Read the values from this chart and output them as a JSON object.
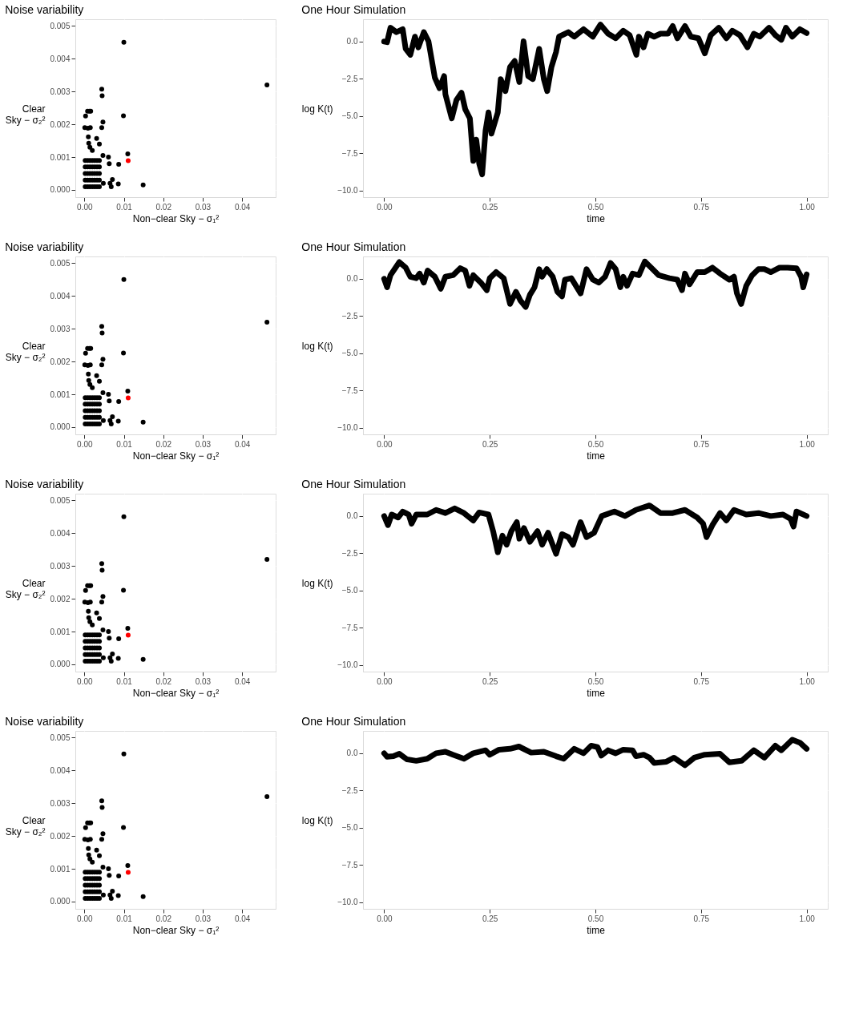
{
  "chart_data": [
    {
      "type": "scatter",
      "title": "Noise variability",
      "xlabel": "Non−clear Sky − σ₁²",
      "ylabel": "Clear Sky − σ₂²",
      "marker": "circle",
      "grid": true,
      "legend": false,
      "xlim": [
        -0.0023,
        0.0485
      ],
      "ylim": [
        -0.00022,
        0.0052
      ],
      "xticks": [
        {
          "value": 0,
          "label": "0.00"
        },
        {
          "value": 0.01,
          "label": "0.01"
        },
        {
          "value": 0.02,
          "label": "0.02"
        },
        {
          "value": 0.03,
          "label": "0.03"
        },
        {
          "value": 0.04,
          "label": "0.04"
        }
      ],
      "yticks": [
        {
          "value": 0,
          "label": "0.000"
        },
        {
          "value": 0.001,
          "label": "0.001"
        },
        {
          "value": 0.002,
          "label": "0.002"
        },
        {
          "value": 0.003,
          "label": "0.003"
        },
        {
          "value": 0.004,
          "label": "0.004"
        },
        {
          "value": 0.005,
          "label": "0.005"
        }
      ],
      "series": [
        {
          "color": "#000000",
          "x": [
            0.01,
            0.0463,
            0.0044,
            0.0045,
            0.0099,
            0.0008,
            0.0013,
            0.0016,
            0.0003,
            0.0047,
            0.0044,
            0.0001,
            0.0009,
            0.0015,
            0.001,
            0.0031,
            0.0038,
            0.0011,
            0.0014,
            0.002,
            0.011,
            0.0061,
            0.0047,
            0.0087,
            0.0063,
            0.0071,
            0.0065,
            0.0068,
            0.0086,
            0.0048,
            0.0149,
            0.0002,
            0.0008,
            0.0014,
            0.002,
            0.0026,
            0.0032,
            0.0038,
            0.0002,
            0.0008,
            0.0014,
            0.002,
            0.0026,
            0.0032,
            0.0038,
            0.0002,
            0.0008,
            0.0014,
            0.002,
            0.0026,
            0.0032,
            0.0038,
            0.0002,
            0.0008,
            0.0014,
            0.002,
            0.0026,
            0.0032,
            0.0038,
            0.0002,
            0.0008,
            0.0014,
            0.002,
            0.0026,
            0.0032,
            0.0038
          ],
          "values": [
            0.0045,
            0.0032,
            0.00307,
            0.00287,
            0.00226,
            0.0024,
            0.0024,
            0.0024,
            0.00225,
            0.00207,
            0.0019,
            0.0019,
            0.00188,
            0.0019,
            0.00162,
            0.00157,
            0.0014,
            0.00142,
            0.0013,
            0.0012,
            0.0011,
            0.001,
            0.00105,
            0.00078,
            0.0008,
            0.00032,
            0.0002,
            0.0001,
            0.00018,
            0.0002,
            0.00015,
            0.0001,
            0.0001,
            0.0001,
            0.0001,
            0.0001,
            0.0001,
            0.0001,
            0.0003,
            0.0003,
            0.0003,
            0.0003,
            0.0003,
            0.0003,
            0.0003,
            0.0005,
            0.0005,
            0.0005,
            0.0005,
            0.0005,
            0.0005,
            0.0005,
            0.0007,
            0.0007,
            0.0007,
            0.0007,
            0.0007,
            0.0007,
            0.0007,
            0.0009,
            0.0009,
            0.0009,
            0.0009,
            0.0009,
            0.0009,
            0.0009
          ]
        },
        {
          "color": "#ff0000",
          "x": [
            0.0111
          ],
          "values": [
            0.00089
          ]
        }
      ]
    },
    {
      "type": "line",
      "title": "One Hour Simulation",
      "xlabel": "time",
      "ylabel": "log K(t)",
      "grid": true,
      "legend": false,
      "line_style": "solid",
      "color": "#000000",
      "xlim": [
        -0.05,
        1.05
      ],
      "ylim": [
        -10.45,
        1.5
      ],
      "xticks": [
        {
          "value": 0,
          "label": "0.00"
        },
        {
          "value": 0.25,
          "label": "0.25"
        },
        {
          "value": 0.5,
          "label": "0.50"
        },
        {
          "value": 0.75,
          "label": "0.75"
        },
        {
          "value": 1,
          "label": "1.00"
        }
      ],
      "yticks": [
        {
          "value": -10,
          "label": "−10.0"
        },
        {
          "value": -7.5,
          "label": "−7.5"
        },
        {
          "value": -5,
          "label": "−5.0"
        },
        {
          "value": -2.5,
          "label": "−2.5"
        },
        {
          "value": 0,
          "label": "0.0"
        }
      ],
      "x": [
        0,
        0.007,
        0.015,
        0.029,
        0.044,
        0.051,
        0.062,
        0.073,
        0.081,
        0.094,
        0.105,
        0.12,
        0.131,
        0.142,
        0.145,
        0.16,
        0.171,
        0.183,
        0.192,
        0.203,
        0.211,
        0.218,
        0.225,
        0.232,
        0.24,
        0.247,
        0.254,
        0.269,
        0.276,
        0.287,
        0.298,
        0.309,
        0.32,
        0.33,
        0.341,
        0.352,
        0.367,
        0.378,
        0.386,
        0.396,
        0.407,
        0.414,
        0.436,
        0.45,
        0.472,
        0.494,
        0.512,
        0.53,
        0.548,
        0.566,
        0.581,
        0.597,
        0.603,
        0.614,
        0.624,
        0.639,
        0.654,
        0.672,
        0.683,
        0.694,
        0.712,
        0.726,
        0.744,
        0.759,
        0.773,
        0.792,
        0.81,
        0.824,
        0.842,
        0.86,
        0.875,
        0.889,
        0.911,
        0.926,
        0.94,
        0.951,
        0.966,
        0.984,
        1.0
      ],
      "values": [
        0,
        -0.04,
        0.93,
        0.63,
        0.83,
        -0.49,
        -0.89,
        0.33,
        -0.39,
        0.63,
        0.02,
        -2.42,
        -3.13,
        -2.32,
        -3.54,
        -5.16,
        -3.94,
        -3.43,
        -4.55,
        -5.16,
        -8.01,
        -6.59,
        -8.21,
        -8.92,
        -5.98,
        -4.76,
        -6.18,
        -4.76,
        -2.52,
        -3.33,
        -1.71,
        -1.3,
        -2.72,
        0.02,
        -2.32,
        -2.52,
        -0.49,
        -2.52,
        -3.33,
        -1.71,
        -0.69,
        0.33,
        0.63,
        0.33,
        0.83,
        0.33,
        1.14,
        0.53,
        0.22,
        0.73,
        0.43,
        -0.89,
        0.33,
        -0.39,
        0.53,
        0.33,
        0.53,
        0.53,
        1.04,
        0.22,
        1.04,
        0.33,
        0.22,
        -0.79,
        0.43,
        0.93,
        0.22,
        0.73,
        0.43,
        -0.39,
        0.53,
        0.33,
        0.93,
        0.43,
        0.12,
        0.93,
        0.33,
        0.83,
        0.57
      ]
    },
    {
      "type": "scatter",
      "title": "Noise variability",
      "xlabel": "Non−clear Sky − σ₁²",
      "ylabel": "Clear Sky − σ₂²",
      "marker": "circle",
      "grid": true,
      "legend": false,
      "xlim": [
        -0.0023,
        0.0485
      ],
      "ylim": [
        -0.00022,
        0.0052
      ],
      "xticks": [
        {
          "value": 0,
          "label": "0.00"
        },
        {
          "value": 0.01,
          "label": "0.01"
        },
        {
          "value": 0.02,
          "label": "0.02"
        },
        {
          "value": 0.03,
          "label": "0.03"
        },
        {
          "value": 0.04,
          "label": "0.04"
        }
      ],
      "yticks": [
        {
          "value": 0,
          "label": "0.000"
        },
        {
          "value": 0.001,
          "label": "0.001"
        },
        {
          "value": 0.002,
          "label": "0.002"
        },
        {
          "value": 0.003,
          "label": "0.003"
        },
        {
          "value": 0.004,
          "label": "0.004"
        },
        {
          "value": 0.005,
          "label": "0.005"
        }
      ],
      "series": [
        {
          "color": "#000000",
          "x": [
            0.01,
            0.0463,
            0.0044,
            0.0045,
            0.0099,
            0.0008,
            0.0013,
            0.0016,
            0.0003,
            0.0047,
            0.0044,
            0.0001,
            0.0009,
            0.0015,
            0.001,
            0.0031,
            0.0038,
            0.0011,
            0.0014,
            0.002,
            0.011,
            0.0061,
            0.0047,
            0.0087,
            0.0063,
            0.0071,
            0.0065,
            0.0068,
            0.0086,
            0.0048,
            0.0149,
            0.0002,
            0.0008,
            0.0014,
            0.002,
            0.0026,
            0.0032,
            0.0038,
            0.0002,
            0.0008,
            0.0014,
            0.002,
            0.0026,
            0.0032,
            0.0038,
            0.0002,
            0.0008,
            0.0014,
            0.002,
            0.0026,
            0.0032,
            0.0038,
            0.0002,
            0.0008,
            0.0014,
            0.002,
            0.0026,
            0.0032,
            0.0038,
            0.0002,
            0.0008,
            0.0014,
            0.002,
            0.0026,
            0.0032,
            0.0038
          ],
          "values": [
            0.0045,
            0.0032,
            0.00307,
            0.00287,
            0.00226,
            0.0024,
            0.0024,
            0.0024,
            0.00225,
            0.00207,
            0.0019,
            0.0019,
            0.00188,
            0.0019,
            0.00162,
            0.00157,
            0.0014,
            0.00142,
            0.0013,
            0.0012,
            0.0011,
            0.001,
            0.00105,
            0.00078,
            0.0008,
            0.00032,
            0.0002,
            0.0001,
            0.00018,
            0.0002,
            0.00015,
            0.0001,
            0.0001,
            0.0001,
            0.0001,
            0.0001,
            0.0001,
            0.0001,
            0.0003,
            0.0003,
            0.0003,
            0.0003,
            0.0003,
            0.0003,
            0.0003,
            0.0005,
            0.0005,
            0.0005,
            0.0005,
            0.0005,
            0.0005,
            0.0005,
            0.0007,
            0.0007,
            0.0007,
            0.0007,
            0.0007,
            0.0007,
            0.0007,
            0.0009,
            0.0009,
            0.0009,
            0.0009,
            0.0009,
            0.0009,
            0.0009
          ]
        },
        {
          "color": "#ff0000",
          "x": [
            0.0111
          ],
          "values": [
            0.00089
          ]
        }
      ]
    },
    {
      "type": "line",
      "title": "One Hour Simulation",
      "xlabel": "time",
      "ylabel": "log K(t)",
      "grid": true,
      "legend": false,
      "line_style": "solid",
      "color": "#000000",
      "xlim": [
        -0.05,
        1.05
      ],
      "ylim": [
        -10.45,
        1.5
      ],
      "xticks": [
        {
          "value": 0,
          "label": "0.00"
        },
        {
          "value": 0.25,
          "label": "0.25"
        },
        {
          "value": 0.5,
          "label": "0.50"
        },
        {
          "value": 0.75,
          "label": "0.75"
        },
        {
          "value": 1,
          "label": "1.00"
        }
      ],
      "yticks": [
        {
          "value": -10,
          "label": "−10.0"
        },
        {
          "value": -7.5,
          "label": "−7.5"
        },
        {
          "value": -5,
          "label": "−5.0"
        },
        {
          "value": -2.5,
          "label": "−2.5"
        },
        {
          "value": 0,
          "label": "0.0"
        }
      ],
      "x": [
        0,
        0.007,
        0.015,
        0.036,
        0.051,
        0.062,
        0.076,
        0.084,
        0.094,
        0.103,
        0.12,
        0.134,
        0.145,
        0.163,
        0.18,
        0.192,
        0.202,
        0.211,
        0.229,
        0.243,
        0.25,
        0.265,
        0.283,
        0.298,
        0.312,
        0.323,
        0.335,
        0.345,
        0.356,
        0.367,
        0.374,
        0.385,
        0.399,
        0.41,
        0.421,
        0.428,
        0.443,
        0.454,
        0.465,
        0.479,
        0.494,
        0.508,
        0.523,
        0.536,
        0.548,
        0.559,
        0.566,
        0.575,
        0.588,
        0.603,
        0.617,
        0.632,
        0.65,
        0.675,
        0.694,
        0.705,
        0.712,
        0.723,
        0.741,
        0.759,
        0.777,
        0.795,
        0.817,
        0.828,
        0.835,
        0.845,
        0.857,
        0.871,
        0.886,
        0.9,
        0.915,
        0.936,
        0.955,
        0.976,
        0.987,
        0.992,
        1.0
      ],
      "values": [
        0,
        -0.57,
        0.24,
        1.12,
        0.75,
        0.14,
        0.04,
        0.35,
        -0.26,
        0.55,
        0.14,
        -0.67,
        0.14,
        0.24,
        0.71,
        0.55,
        -0.47,
        0.24,
        -0.26,
        -0.77,
        0.04,
        0.45,
        0.04,
        -1.69,
        -0.87,
        -1.48,
        -1.89,
        -1.08,
        -0.57,
        0.65,
        0.14,
        0.65,
        0.14,
        -0.87,
        -1.18,
        -0.06,
        0.04,
        -0.47,
        -0.98,
        0.65,
        -0.06,
        -0.26,
        0.14,
        1.06,
        0.65,
        -0.57,
        0.14,
        -0.47,
        0.35,
        0.24,
        1.16,
        0.75,
        0.24,
        0.04,
        -0.06,
        -0.77,
        0.35,
        -0.37,
        0.45,
        0.45,
        0.75,
        0.35,
        -0.06,
        0.14,
        -0.98,
        -1.69,
        -0.47,
        0.24,
        0.65,
        0.65,
        0.45,
        0.75,
        0.75,
        0.71,
        0.14,
        -0.57,
        0.3
      ]
    },
    {
      "type": "scatter",
      "title": "Noise variability",
      "xlabel": "Non−clear Sky − σ₁²",
      "ylabel": "Clear Sky − σ₂²",
      "marker": "circle",
      "grid": true,
      "legend": false,
      "xlim": [
        -0.0023,
        0.0485
      ],
      "ylim": [
        -0.00022,
        0.0052
      ],
      "xticks": [
        {
          "value": 0,
          "label": "0.00"
        },
        {
          "value": 0.01,
          "label": "0.01"
        },
        {
          "value": 0.02,
          "label": "0.02"
        },
        {
          "value": 0.03,
          "label": "0.03"
        },
        {
          "value": 0.04,
          "label": "0.04"
        }
      ],
      "yticks": [
        {
          "value": 0,
          "label": "0.000"
        },
        {
          "value": 0.001,
          "label": "0.001"
        },
        {
          "value": 0.002,
          "label": "0.002"
        },
        {
          "value": 0.003,
          "label": "0.003"
        },
        {
          "value": 0.004,
          "label": "0.004"
        },
        {
          "value": 0.005,
          "label": "0.005"
        }
      ],
      "series": [
        {
          "color": "#000000",
          "x": [
            0.01,
            0.0463,
            0.0044,
            0.0045,
            0.0099,
            0.0008,
            0.0013,
            0.0016,
            0.0003,
            0.0047,
            0.0044,
            0.0001,
            0.0009,
            0.0015,
            0.001,
            0.0031,
            0.0038,
            0.0011,
            0.0014,
            0.002,
            0.011,
            0.0061,
            0.0047,
            0.0087,
            0.0063,
            0.0071,
            0.0065,
            0.0068,
            0.0086,
            0.0048,
            0.0149,
            0.0002,
            0.0008,
            0.0014,
            0.002,
            0.0026,
            0.0032,
            0.0038,
            0.0002,
            0.0008,
            0.0014,
            0.002,
            0.0026,
            0.0032,
            0.0038,
            0.0002,
            0.0008,
            0.0014,
            0.002,
            0.0026,
            0.0032,
            0.0038,
            0.0002,
            0.0008,
            0.0014,
            0.002,
            0.0026,
            0.0032,
            0.0038,
            0.0002,
            0.0008,
            0.0014,
            0.002,
            0.0026,
            0.0032,
            0.0038
          ],
          "values": [
            0.0045,
            0.0032,
            0.00307,
            0.00287,
            0.00226,
            0.0024,
            0.0024,
            0.0024,
            0.00225,
            0.00207,
            0.0019,
            0.0019,
            0.00188,
            0.0019,
            0.00162,
            0.00157,
            0.0014,
            0.00142,
            0.0013,
            0.0012,
            0.0011,
            0.001,
            0.00105,
            0.00078,
            0.0008,
            0.00032,
            0.0002,
            0.0001,
            0.00018,
            0.0002,
            0.00015,
            0.0001,
            0.0001,
            0.0001,
            0.0001,
            0.0001,
            0.0001,
            0.0001,
            0.0003,
            0.0003,
            0.0003,
            0.0003,
            0.0003,
            0.0003,
            0.0003,
            0.0005,
            0.0005,
            0.0005,
            0.0005,
            0.0005,
            0.0005,
            0.0005,
            0.0007,
            0.0007,
            0.0007,
            0.0007,
            0.0007,
            0.0007,
            0.0007,
            0.0009,
            0.0009,
            0.0009,
            0.0009,
            0.0009,
            0.0009,
            0.0009
          ]
        },
        {
          "color": "#ff0000",
          "x": [
            0.0111
          ],
          "values": [
            0.00089
          ]
        }
      ]
    },
    {
      "type": "line",
      "title": "One Hour Simulation",
      "xlabel": "time",
      "ylabel": "log K(t)",
      "grid": true,
      "legend": false,
      "line_style": "solid",
      "color": "#000000",
      "xlim": [
        -0.05,
        1.05
      ],
      "ylim": [
        -10.45,
        1.5
      ],
      "xticks": [
        {
          "value": 0,
          "label": "0.00"
        },
        {
          "value": 0.25,
          "label": "0.25"
        },
        {
          "value": 0.5,
          "label": "0.50"
        },
        {
          "value": 0.75,
          "label": "0.75"
        },
        {
          "value": 1,
          "label": "1.00"
        }
      ],
      "yticks": [
        {
          "value": -10,
          "label": "−10.0"
        },
        {
          "value": -7.5,
          "label": "−7.5"
        },
        {
          "value": -5,
          "label": "−5.0"
        },
        {
          "value": -2.5,
          "label": "−2.5"
        },
        {
          "value": 0,
          "label": "0.0"
        }
      ],
      "x": [
        0,
        0.009,
        0.018,
        0.033,
        0.044,
        0.058,
        0.065,
        0.076,
        0.102,
        0.123,
        0.145,
        0.167,
        0.189,
        0.211,
        0.225,
        0.247,
        0.258,
        0.269,
        0.28,
        0.29,
        0.301,
        0.314,
        0.32,
        0.331,
        0.345,
        0.363,
        0.374,
        0.388,
        0.407,
        0.421,
        0.436,
        0.447,
        0.465,
        0.479,
        0.497,
        0.515,
        0.545,
        0.57,
        0.596,
        0.628,
        0.654,
        0.683,
        0.712,
        0.741,
        0.755,
        0.763,
        0.777,
        0.795,
        0.81,
        0.828,
        0.857,
        0.886,
        0.915,
        0.944,
        0.962,
        0.969,
        0.976,
        1.0
      ],
      "values": [
        0,
        -0.61,
        0.1,
        -0.1,
        0.3,
        0.1,
        -0.51,
        0.1,
        0.1,
        0.41,
        0.2,
        0.51,
        0.2,
        -0.3,
        0.24,
        0.1,
        -1.02,
        -2.44,
        -1.32,
        -1.93,
        -1.02,
        -0.41,
        -1.52,
        -0.81,
        -1.73,
        -1.02,
        -1.93,
        -1.12,
        -2.54,
        -1.22,
        -1.42,
        -1.93,
        -0.41,
        -1.42,
        -1.12,
        0,
        0.3,
        0,
        0.41,
        0.71,
        0.2,
        0.2,
        0.41,
        -0.1,
        -0.51,
        -1.42,
        -0.61,
        0.2,
        -0.3,
        0.41,
        0.1,
        0.2,
        0,
        0.1,
        -0.2,
        -0.71,
        0.3,
        0
      ]
    },
    {
      "type": "scatter",
      "title": "Noise variability",
      "xlabel": "Non−clear Sky − σ₁²",
      "ylabel": "Clear Sky − σ₂²",
      "marker": "circle",
      "grid": true,
      "legend": false,
      "xlim": [
        -0.0023,
        0.0485
      ],
      "ylim": [
        -0.00022,
        0.0052
      ],
      "xticks": [
        {
          "value": 0,
          "label": "0.00"
        },
        {
          "value": 0.01,
          "label": "0.01"
        },
        {
          "value": 0.02,
          "label": "0.02"
        },
        {
          "value": 0.03,
          "label": "0.03"
        },
        {
          "value": 0.04,
          "label": "0.04"
        }
      ],
      "yticks": [
        {
          "value": 0,
          "label": "0.000"
        },
        {
          "value": 0.001,
          "label": "0.001"
        },
        {
          "value": 0.002,
          "label": "0.002"
        },
        {
          "value": 0.003,
          "label": "0.003"
        },
        {
          "value": 0.004,
          "label": "0.004"
        },
        {
          "value": 0.005,
          "label": "0.005"
        }
      ],
      "series": [
        {
          "color": "#000000",
          "x": [
            0.01,
            0.0463,
            0.0044,
            0.0045,
            0.0099,
            0.0008,
            0.0013,
            0.0016,
            0.0003,
            0.0047,
            0.0044,
            0.0001,
            0.0009,
            0.0015,
            0.001,
            0.0031,
            0.0038,
            0.0011,
            0.0014,
            0.002,
            0.011,
            0.0061,
            0.0047,
            0.0087,
            0.0063,
            0.0071,
            0.0065,
            0.0068,
            0.0086,
            0.0048,
            0.0149,
            0.0002,
            0.0008,
            0.0014,
            0.002,
            0.0026,
            0.0032,
            0.0038,
            0.0002,
            0.0008,
            0.0014,
            0.002,
            0.0026,
            0.0032,
            0.0038,
            0.0002,
            0.0008,
            0.0014,
            0.002,
            0.0026,
            0.0032,
            0.0038,
            0.0002,
            0.0008,
            0.0014,
            0.002,
            0.0026,
            0.0032,
            0.0038,
            0.0002,
            0.0008,
            0.0014,
            0.002,
            0.0026,
            0.0032,
            0.0038
          ],
          "values": [
            0.0045,
            0.0032,
            0.00307,
            0.00287,
            0.00226,
            0.0024,
            0.0024,
            0.0024,
            0.00225,
            0.00207,
            0.0019,
            0.0019,
            0.00188,
            0.0019,
            0.00162,
            0.00157,
            0.0014,
            0.00142,
            0.0013,
            0.0012,
            0.0011,
            0.001,
            0.00105,
            0.00078,
            0.0008,
            0.00032,
            0.0002,
            0.0001,
            0.00018,
            0.0002,
            0.00015,
            0.0001,
            0.0001,
            0.0001,
            0.0001,
            0.0001,
            0.0001,
            0.0001,
            0.0003,
            0.0003,
            0.0003,
            0.0003,
            0.0003,
            0.0003,
            0.0003,
            0.0005,
            0.0005,
            0.0005,
            0.0005,
            0.0005,
            0.0005,
            0.0005,
            0.0007,
            0.0007,
            0.0007,
            0.0007,
            0.0007,
            0.0007,
            0.0007,
            0.0009,
            0.0009,
            0.0009,
            0.0009,
            0.0009,
            0.0009,
            0.0009
          ]
        },
        {
          "color": "#ff0000",
          "x": [
            0.0111
          ],
          "values": [
            0.00089
          ]
        }
      ]
    },
    {
      "type": "line",
      "title": "One Hour Simulation",
      "xlabel": "time",
      "ylabel": "log K(t)",
      "grid": true,
      "legend": false,
      "line_style": "solid",
      "color": "#000000",
      "xlim": [
        -0.05,
        1.05
      ],
      "ylim": [
        -10.45,
        1.5
      ],
      "xticks": [
        {
          "value": 0,
          "label": "0.00"
        },
        {
          "value": 0.25,
          "label": "0.25"
        },
        {
          "value": 0.5,
          "label": "0.50"
        },
        {
          "value": 0.75,
          "label": "0.75"
        },
        {
          "value": 1,
          "label": "1.00"
        }
      ],
      "yticks": [
        {
          "value": -10,
          "label": "−10.0"
        },
        {
          "value": -7.5,
          "label": "−7.5"
        },
        {
          "value": -5,
          "label": "−5.0"
        },
        {
          "value": -2.5,
          "label": "−2.5"
        },
        {
          "value": 0,
          "label": "0.0"
        }
      ],
      "x": [
        0,
        0.007,
        0.022,
        0.036,
        0.054,
        0.076,
        0.102,
        0.123,
        0.145,
        0.163,
        0.189,
        0.211,
        0.24,
        0.25,
        0.272,
        0.298,
        0.319,
        0.348,
        0.378,
        0.407,
        0.425,
        0.45,
        0.472,
        0.49,
        0.505,
        0.514,
        0.53,
        0.548,
        0.566,
        0.588,
        0.596,
        0.614,
        0.628,
        0.639,
        0.668,
        0.686,
        0.712,
        0.734,
        0.759,
        0.795,
        0.817,
        0.846,
        0.875,
        0.9,
        0.926,
        0.94,
        0.966,
        0.984,
        1.0
      ],
      "values": [
        0,
        -0.24,
        -0.2,
        -0.04,
        -0.41,
        -0.51,
        -0.37,
        0,
        0.1,
        -0.1,
        -0.37,
        0,
        0.2,
        -0.1,
        0.24,
        0.3,
        0.45,
        0.04,
        0.1,
        -0.2,
        -0.37,
        0.3,
        0,
        0.51,
        0.41,
        -0.16,
        0.2,
        0,
        0.24,
        0.2,
        -0.2,
        -0.1,
        -0.3,
        -0.65,
        -0.57,
        -0.3,
        -0.81,
        -0.3,
        -0.1,
        -0.04,
        -0.61,
        -0.51,
        0.2,
        -0.3,
        0.51,
        0.2,
        0.91,
        0.71,
        0.3
      ]
    }
  ]
}
